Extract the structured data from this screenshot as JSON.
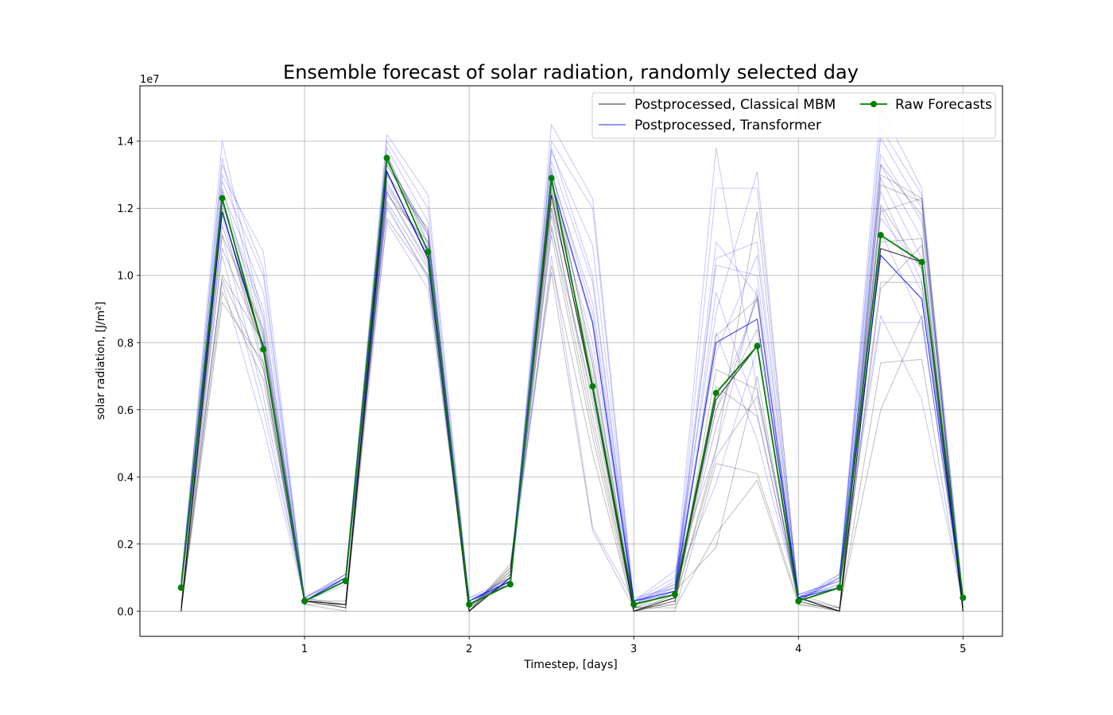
{
  "chart_data": {
    "type": "line",
    "title": "Ensemble forecast of solar radiation, randomly selected day",
    "xlabel": "Timestep, [days]",
    "ylabel": "solar radiation, [J/m²]",
    "y_offset_label": "1e7",
    "xlim": [
      0.0,
      5.24
    ],
    "ylim": [
      -0.075,
      1.565
    ],
    "x_ticks": [
      1,
      2,
      3,
      4,
      5
    ],
    "y_ticks": [
      0.0,
      0.2,
      0.4,
      0.6,
      0.8,
      1.0,
      1.2,
      1.4
    ],
    "x_tick_labels": [
      "1",
      "2",
      "3",
      "4",
      "5"
    ],
    "y_tick_labels": [
      "0.0",
      "0.2",
      "0.4",
      "0.6",
      "0.8",
      "1.0",
      "1.2",
      "1.4"
    ],
    "grid": true,
    "legend_position": "top-right",
    "legend": [
      {
        "label": "Postprocessed, Classical MBM",
        "color": "#000000",
        "marker": false
      },
      {
        "label": "Postprocessed, Transformer",
        "color": "#0000ff",
        "marker": false
      },
      {
        "label": "Raw Forecasts",
        "color": "#008000",
        "marker": true
      }
    ],
    "x": [
      0.25,
      0.5,
      0.75,
      1.0,
      1.25,
      1.5,
      1.75,
      2.0,
      2.25,
      2.5,
      2.75,
      3.0,
      3.25,
      3.5,
      3.75,
      4.0,
      4.25,
      4.5,
      4.75,
      5.0
    ],
    "series": [
      {
        "name": "Raw Forecasts",
        "color": "#008000",
        "values": [
          0.07,
          1.23,
          0.78,
          0.03,
          0.09,
          1.35,
          1.07,
          0.02,
          0.08,
          1.29,
          0.67,
          0.02,
          0.05,
          0.65,
          0.79,
          0.03,
          0.07,
          1.12,
          1.04,
          0.04
        ]
      },
      {
        "name": "Postprocessed, Classical MBM",
        "color": "#000000",
        "values": [
          0.0,
          1.19,
          0.78,
          0.03,
          0.02,
          1.31,
          1.05,
          0.0,
          0.1,
          1.24,
          0.66,
          0.0,
          0.04,
          0.63,
          0.79,
          0.04,
          0.0,
          1.08,
          1.04,
          0.0
        ]
      },
      {
        "name": "Postprocessed, Transformer",
        "color": "#0000ff",
        "values": [
          0.07,
          1.19,
          0.79,
          0.03,
          0.1,
          1.31,
          1.05,
          0.03,
          0.09,
          1.28,
          0.86,
          0.03,
          0.06,
          0.8,
          0.87,
          0.04,
          0.07,
          1.06,
          0.93,
          0.03
        ]
      }
    ],
    "ensemble_members": {
      "classical_mbm": [
        [
          0.0,
          0.92,
          0.74,
          0.03,
          0.01,
          1.17,
          1.0,
          0.0,
          0.14,
          1.03,
          0.47,
          0.0,
          0.0,
          0.44,
          0.41,
          0.03,
          0.0,
          0.96,
          1.09,
          0.0
        ],
        [
          0.01,
          0.95,
          0.69,
          0.04,
          0.02,
          1.22,
          1.02,
          0.01,
          0.13,
          1.01,
          0.24,
          0.01,
          0.01,
          0.23,
          0.39,
          0.02,
          0.0,
          0.74,
          0.75,
          0.01
        ],
        [
          0.0,
          1.0,
          0.8,
          0.03,
          0.02,
          1.26,
          1.08,
          0.0,
          0.12,
          1.12,
          0.52,
          0.0,
          0.03,
          0.46,
          0.64,
          0.04,
          0.01,
          0.98,
          0.98,
          0.0
        ],
        [
          0.02,
          1.12,
          0.84,
          0.03,
          0.01,
          1.24,
          1.1,
          0.0,
          0.11,
          1.2,
          0.58,
          0.01,
          0.02,
          0.72,
          0.66,
          0.03,
          0.0,
          1.21,
          1.02,
          0.0
        ],
        [
          0.0,
          1.2,
          0.74,
          0.02,
          0.0,
          1.33,
          1.12,
          0.01,
          0.09,
          1.26,
          0.7,
          0.0,
          0.05,
          0.55,
          0.94,
          0.04,
          0.0,
          1.27,
          1.22,
          0.0
        ],
        [
          0.01,
          1.26,
          0.82,
          0.03,
          0.02,
          1.3,
          1.14,
          0.0,
          0.1,
          1.28,
          0.76,
          0.0,
          0.03,
          0.6,
          0.84,
          0.05,
          0.01,
          1.3,
          1.23,
          0.01
        ],
        [
          0.0,
          1.08,
          0.79,
          0.04,
          0.01,
          1.28,
          1.06,
          0.01,
          0.12,
          1.18,
          0.62,
          0.01,
          0.04,
          0.82,
          0.93,
          0.03,
          0.0,
          1.1,
          1.11,
          0.0
        ],
        [
          0.0,
          1.15,
          0.77,
          0.03,
          0.03,
          1.36,
          1.09,
          0.0,
          0.1,
          1.32,
          0.73,
          0.0,
          0.02,
          0.67,
          0.58,
          0.04,
          0.0,
          1.33,
          1.18,
          0.0
        ],
        [
          0.01,
          0.99,
          0.72,
          0.02,
          0.02,
          1.25,
          1.04,
          0.02,
          0.11,
          1.15,
          0.55,
          0.01,
          0.06,
          0.19,
          0.7,
          0.02,
          0.01,
          0.6,
          0.88,
          0.01
        ],
        [
          0.0,
          1.22,
          0.81,
          0.03,
          0.01,
          1.34,
          1.13,
          0.0,
          0.13,
          1.22,
          0.68,
          0.0,
          0.03,
          0.48,
          1.19,
          0.04,
          0.0,
          1.19,
          1.23,
          0.0
        ]
      ],
      "transformer": [
        [
          0.08,
          1.4,
          0.86,
          0.03,
          0.1,
          1.42,
          1.24,
          0.03,
          0.09,
          1.45,
          1.23,
          0.03,
          0.07,
          1.38,
          0.66,
          0.04,
          0.1,
          1.5,
          1.26,
          0.04
        ],
        [
          0.07,
          1.35,
          0.83,
          0.04,
          0.11,
          1.38,
          1.16,
          0.02,
          0.08,
          1.4,
          1.2,
          0.02,
          0.05,
          1.26,
          1.26,
          0.05,
          0.09,
          1.41,
          1.2,
          0.03
        ],
        [
          0.06,
          1.3,
          1.07,
          0.03,
          0.09,
          1.36,
          1.1,
          0.04,
          0.1,
          1.37,
          1.09,
          0.03,
          0.1,
          0.89,
          1.31,
          0.03,
          0.11,
          1.36,
          1.16,
          0.04
        ],
        [
          0.09,
          1.28,
          1.0,
          0.03,
          0.08,
          1.33,
          1.12,
          0.03,
          0.09,
          1.34,
          0.98,
          0.02,
          0.08,
          1.03,
          1.0,
          0.04,
          0.08,
          1.33,
          1.11,
          0.03
        ],
        [
          0.07,
          1.25,
          0.95,
          0.04,
          0.1,
          1.3,
          1.06,
          0.03,
          0.08,
          1.3,
          0.92,
          0.03,
          0.06,
          0.95,
          0.59,
          0.03,
          0.1,
          1.29,
          1.05,
          0.04
        ],
        [
          0.08,
          1.22,
          0.9,
          0.02,
          0.1,
          1.27,
          1.08,
          0.02,
          0.09,
          1.27,
          0.85,
          0.02,
          0.09,
          0.77,
          1.06,
          0.05,
          0.07,
          1.25,
          0.98,
          0.03
        ],
        [
          0.06,
          1.18,
          0.72,
          0.03,
          0.11,
          1.25,
          1.03,
          0.03,
          0.1,
          1.25,
          0.8,
          0.04,
          0.07,
          0.83,
          0.51,
          0.04,
          0.09,
          1.2,
          0.95,
          0.04
        ],
        [
          0.07,
          1.12,
          0.64,
          0.03,
          0.09,
          1.21,
          0.99,
          0.04,
          0.08,
          1.2,
          0.74,
          0.03,
          0.12,
          0.48,
          0.96,
          0.03,
          0.1,
          1.13,
          0.87,
          0.03
        ],
        [
          0.08,
          1.06,
          0.6,
          0.04,
          0.1,
          1.16,
          0.96,
          0.03,
          0.09,
          1.14,
          0.64,
          0.02,
          0.06,
          1.1,
          0.94,
          0.04,
          0.08,
          0.86,
          0.86,
          0.04
        ],
        [
          0.07,
          0.98,
          0.55,
          0.03,
          0.1,
          1.2,
          1.0,
          0.02,
          0.09,
          1.06,
          0.25,
          0.03,
          0.08,
          0.38,
          0.78,
          0.04,
          0.11,
          0.88,
          0.63,
          0.03
        ],
        [
          0.09,
          1.33,
          1.02,
          0.03,
          0.09,
          1.4,
          1.2,
          0.03,
          0.08,
          1.38,
          1.0,
          0.03,
          0.05,
          1.05,
          1.1,
          0.05,
          0.09,
          1.44,
          1.24,
          0.04
        ],
        [
          0.07,
          1.21,
          0.88,
          0.04,
          0.11,
          1.34,
          1.13,
          0.03,
          0.1,
          1.31,
          0.89,
          0.02,
          0.07,
          0.6,
          0.93,
          0.03,
          0.1,
          1.17,
          1.02,
          0.03
        ]
      ]
    }
  }
}
